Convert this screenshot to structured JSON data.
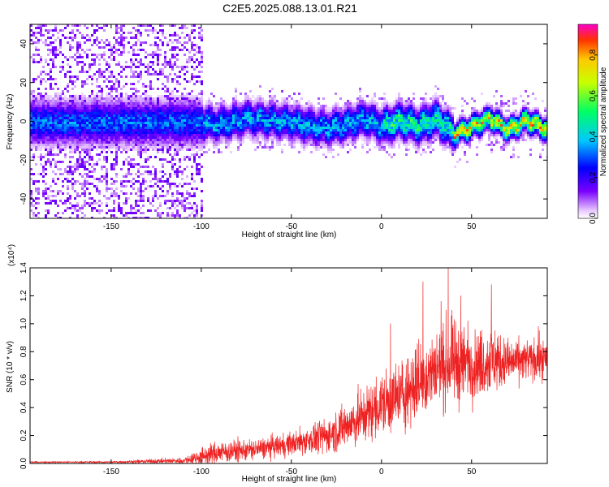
{
  "title": "C2E5.2025.088.13.01.R21",
  "colors": {
    "snr_line": "#ee2222",
    "frame": "#000000"
  },
  "chart_data": [
    {
      "type": "heatmap",
      "name": "spectrogram",
      "xlabel": "Height of straight line (km)",
      "ylabel": "Frequency (Hz)",
      "xlim": [
        -195,
        92
      ],
      "ylim": [
        -50,
        50
      ],
      "xticks": [
        -150,
        -100,
        -50,
        0,
        50
      ],
      "yticks": [
        -40,
        -20,
        0,
        20,
        40
      ],
      "xtick_labels": [
        "-150",
        "-100",
        "-50",
        "0",
        "50"
      ],
      "ytick_labels": [
        "-40",
        "-20",
        "0",
        "20",
        "40"
      ],
      "colorbar": {
        "label": "Normalized spectral amplitude",
        "range": [
          0,
          0.95
        ],
        "ticks": [
          0,
          0.2,
          0.4,
          0.6,
          0.8
        ],
        "tick_labels": [
          "0.0",
          "0.2",
          "0.4",
          "0.6",
          "0.8"
        ],
        "colormap": "rainbow (purple-blue-cyan-green-yellow-red)"
      },
      "signal_ridge": [
        {
          "x": -195,
          "freq": 0
        },
        {
          "x": -150,
          "freq": 0
        },
        {
          "x": -100,
          "freq": 0
        },
        {
          "x": -90,
          "freq": -1
        },
        {
          "x": -75,
          "freq": 2
        },
        {
          "x": -60,
          "freq": 1
        },
        {
          "x": -50,
          "freq": 0
        },
        {
          "x": -40,
          "freq": -2
        },
        {
          "x": -30,
          "freq": -3
        },
        {
          "x": -20,
          "freq": -1
        },
        {
          "x": -10,
          "freq": 2
        },
        {
          "x": 0,
          "freq": -2
        },
        {
          "x": 10,
          "freq": 1
        },
        {
          "x": 20,
          "freq": -2
        },
        {
          "x": 30,
          "freq": 2
        },
        {
          "x": 40,
          "freq": -6
        },
        {
          "x": 50,
          "freq": -2
        },
        {
          "x": 60,
          "freq": 2
        },
        {
          "x": 70,
          "freq": -4
        },
        {
          "x": 80,
          "freq": 1
        },
        {
          "x": 92,
          "freq": -4
        }
      ],
      "notes": "diffuse noise for x < -100; narrow coherent band near 0 Hz for x > -100 with peak amplitudes ~0.8-0.9 for x > 40"
    },
    {
      "type": "line",
      "name": "snr",
      "xlabel": "Height of straight line (km)",
      "ylabel": "SNR (10 * v/v)",
      "y_multiplier": "(x10⁴)",
      "xlim": [
        -195,
        92
      ],
      "ylim": [
        0,
        1.4
      ],
      "xticks": [
        -150,
        -100,
        -50,
        0,
        50
      ],
      "yticks": [
        0,
        0.2,
        0.4,
        0.6,
        0.8,
        1.0,
        1.2,
        1.4
      ],
      "xtick_labels": [
        "-150",
        "-100",
        "-50",
        "0",
        "50"
      ],
      "ytick_labels": [
        "0.0",
        "0.2",
        "0.4",
        "0.6",
        "0.8",
        "1.0",
        "1.2",
        "1.4"
      ],
      "envelope": {
        "x": [
          -195,
          -150,
          -110,
          -100,
          -90,
          -70,
          -50,
          -30,
          -15,
          0,
          10,
          20,
          30,
          40,
          50,
          60,
          70,
          80,
          92
        ],
        "mean": [
          0.01,
          0.01,
          0.02,
          0.05,
          0.08,
          0.1,
          0.14,
          0.2,
          0.3,
          0.42,
          0.48,
          0.58,
          0.68,
          0.72,
          0.7,
          0.74,
          0.72,
          0.74,
          0.74
        ],
        "amplitude": [
          0.005,
          0.007,
          0.02,
          0.06,
          0.08,
          0.07,
          0.08,
          0.12,
          0.18,
          0.22,
          0.24,
          0.28,
          0.26,
          0.3,
          0.22,
          0.24,
          0.16,
          0.14,
          0.14
        ]
      },
      "peaks": [
        {
          "x": 37,
          "y": 1.4
        },
        {
          "x": 23,
          "y": 1.3
        },
        {
          "x": 61,
          "y": 1.28
        },
        {
          "x": 44,
          "y": 1.2
        },
        {
          "x": 33,
          "y": 1.16
        },
        {
          "x": 48,
          "y": 1.02
        },
        {
          "x": 5,
          "y": 1.0
        },
        {
          "x": 87,
          "y": 0.98
        },
        {
          "x": 63,
          "y": 0.95
        }
      ]
    }
  ]
}
